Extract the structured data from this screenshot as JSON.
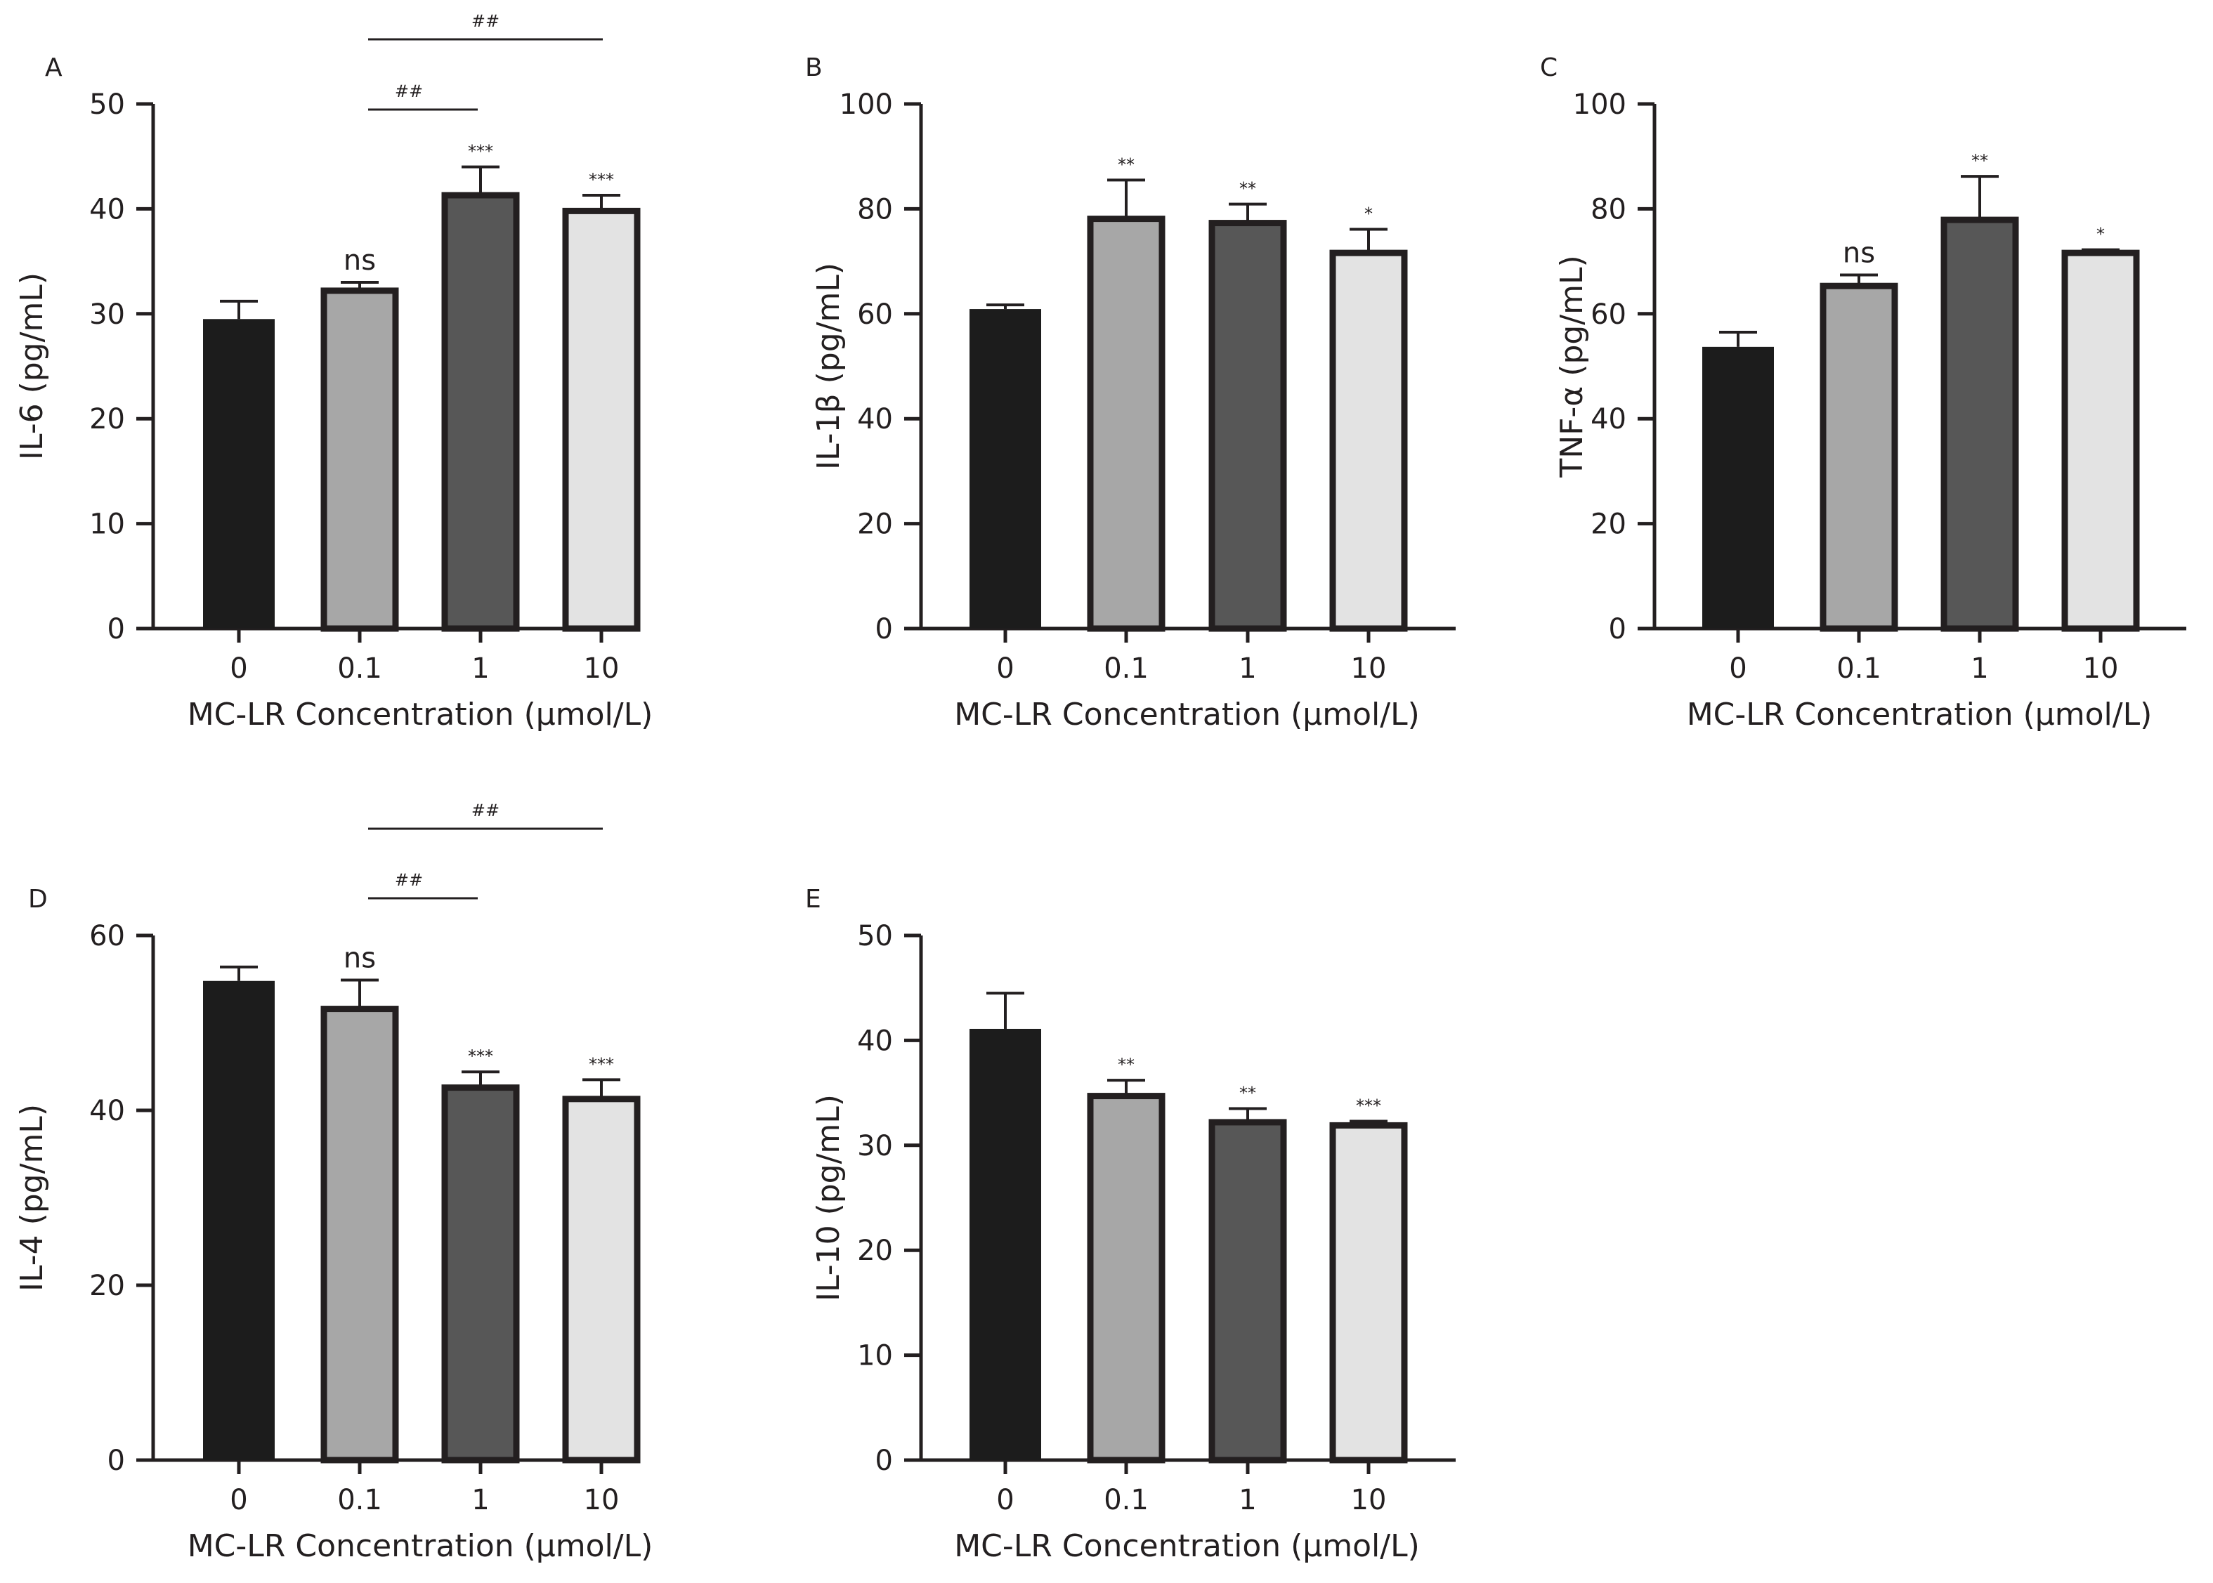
{
  "chart_data": [
    {
      "type": "bar",
      "panel_label": "A",
      "ylabel": "IL-6 (pg/mL)",
      "xlabel": "MC-LR Concentration (μmol/L)",
      "categories": [
        "0",
        "0.1",
        "1",
        "10"
      ],
      "values": [
        29.5,
        32.2,
        41.3,
        39.8
      ],
      "error_plus": [
        1.7,
        0.8,
        2.7,
        1.5
      ],
      "significance": [
        "",
        "ns",
        "***",
        "***"
      ],
      "comparisons": [
        {
          "from": "0.1",
          "to": "1",
          "label": "##"
        },
        {
          "from": "0.1",
          "to": "10",
          "label": "##"
        }
      ],
      "ylim": [
        0,
        50
      ],
      "yticks": [
        0,
        10,
        20,
        30,
        40,
        50
      ],
      "colors": [
        "#1c1c1c",
        "#a7a7a7",
        "#575757",
        "#e3e3e3"
      ]
    },
    {
      "type": "bar",
      "panel_label": "B",
      "ylabel": "IL-1β (pg/mL)",
      "xlabel": "MC-LR Concentration (μmol/L)",
      "categories": [
        "0",
        "0.1",
        "1",
        "10"
      ],
      "values": [
        60.9,
        78.1,
        77.3,
        71.6
      ],
      "error_plus": [
        0.8,
        7.4,
        3.6,
        4.5
      ],
      "significance": [
        "",
        "**",
        "**",
        "*"
      ],
      "comparisons": [],
      "ylim": [
        0,
        100
      ],
      "yticks": [
        0,
        20,
        40,
        60,
        80,
        100
      ],
      "colors": [
        "#1c1c1c",
        "#a7a7a7",
        "#575757",
        "#e3e3e3"
      ]
    },
    {
      "type": "bar",
      "panel_label": "C",
      "ylabel": "TNF-α (pg/mL)",
      "xlabel": "MC-LR Concentration (μmol/L)",
      "categories": [
        "0",
        "0.1",
        "1",
        "10"
      ],
      "values": [
        53.7,
        65.3,
        77.9,
        71.6
      ],
      "error_plus": [
        2.8,
        2.1,
        8.3,
        0.6
      ],
      "significance": [
        "",
        "ns",
        "**",
        "*"
      ],
      "comparisons": [],
      "ylim": [
        0,
        100
      ],
      "yticks": [
        0,
        20,
        40,
        60,
        80,
        100
      ],
      "colors": [
        "#1c1c1c",
        "#a7a7a7",
        "#575757",
        "#e3e3e3"
      ]
    },
    {
      "type": "bar",
      "panel_label": "D",
      "ylabel": "IL-4 (pg/mL)",
      "xlabel": "MC-LR Concentration (μmol/L)",
      "categories": [
        "0",
        "0.1",
        "1",
        "10"
      ],
      "values": [
        54.8,
        51.6,
        42.6,
        41.3
      ],
      "error_plus": [
        1.6,
        3.3,
        1.8,
        2.2
      ],
      "significance": [
        "",
        "ns",
        "***",
        "***"
      ],
      "comparisons": [
        {
          "from": "0.1",
          "to": "1",
          "label": "##"
        },
        {
          "from": "0.1",
          "to": "10",
          "label": "##"
        }
      ],
      "ylim": [
        0,
        60
      ],
      "yticks": [
        0,
        20,
        40,
        60
      ],
      "colors": [
        "#1c1c1c",
        "#a7a7a7",
        "#575757",
        "#e3e3e3"
      ]
    },
    {
      "type": "bar",
      "panel_label": "E",
      "ylabel": "IL-10 (pg/mL)",
      "xlabel": "MC-LR Concentration (μmol/L)",
      "categories": [
        "0",
        "0.1",
        "1",
        "10"
      ],
      "values": [
        41.1,
        34.7,
        32.2,
        31.9
      ],
      "error_plus": [
        3.4,
        1.5,
        1.3,
        0.4
      ],
      "significance": [
        "",
        "**",
        "**",
        "***"
      ],
      "comparisons": [],
      "ylim": [
        0,
        50
      ],
      "yticks": [
        0,
        10,
        20,
        30,
        40,
        50
      ],
      "colors": [
        "#1c1c1c",
        "#a7a7a7",
        "#575757",
        "#e3e3e3"
      ]
    }
  ]
}
